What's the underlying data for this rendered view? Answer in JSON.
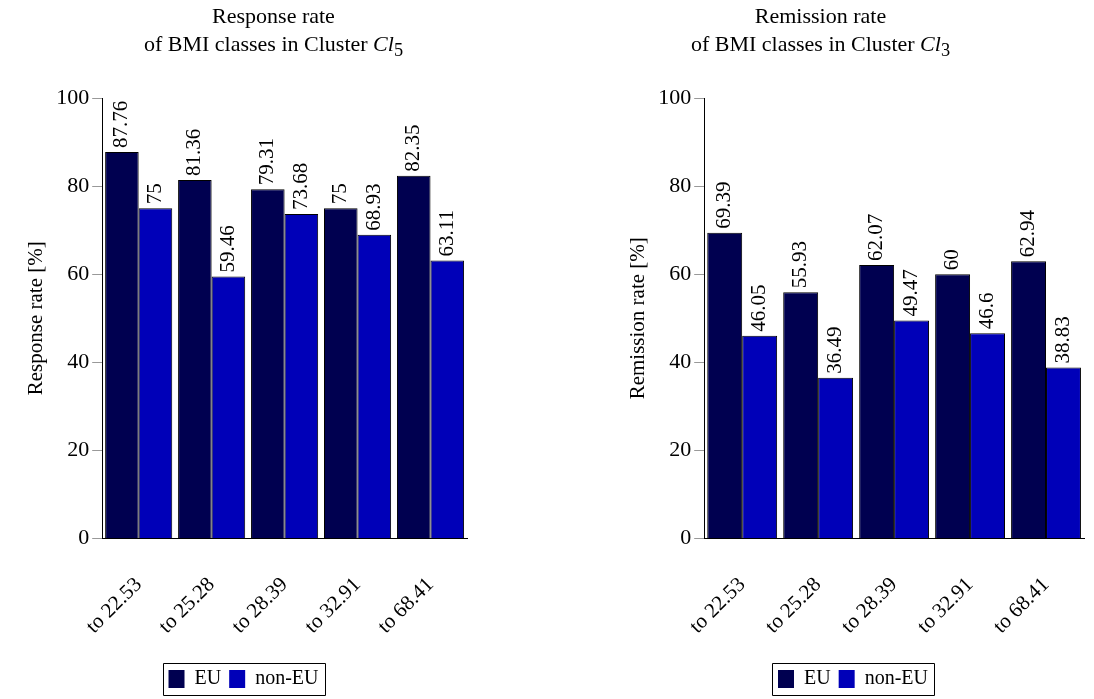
{
  "chart_data": [
    {
      "type": "bar",
      "title": "Response rate\nof BMI classes in Cluster Cl$_{5}$",
      "ylabel": "Response rate [%]",
      "categories": [
        "to 22.53",
        "to 25.28",
        "to 28.39",
        "to 32.91",
        "to 68.41"
      ],
      "series": [
        {
          "name": "EU",
          "color": "#000050",
          "values": [
            87.76,
            81.36,
            79.31,
            75,
            82.35
          ]
        },
        {
          "name": "non-EU",
          "color": "#0000b8",
          "values": [
            75,
            59.46,
            73.68,
            68.93,
            63.11
          ]
        }
      ],
      "ylim": [
        0,
        100
      ],
      "yticks": [
        0,
        20,
        40,
        60,
        80,
        100
      ],
      "data_labels": true,
      "legend": "bottom"
    },
    {
      "type": "bar",
      "title": "Remission rate\nof BMI classes in Cluster Cl$_{3}$",
      "ylabel": "Remission rate [%]",
      "categories": [
        "to 22.53",
        "to 25.28",
        "to 28.39",
        "to 32.91",
        "to 68.41"
      ],
      "series": [
        {
          "name": "EU",
          "color": "#000050",
          "values": [
            69.39,
            55.93,
            62.07,
            60,
            62.94
          ]
        },
        {
          "name": "non-EU",
          "color": "#0000b8",
          "values": [
            46.05,
            36.49,
            49.47,
            46.6,
            38.83
          ]
        }
      ],
      "ylim": [
        0,
        100
      ],
      "yticks": [
        0,
        20,
        40,
        60,
        80,
        100
      ],
      "data_labels": true,
      "legend": "bottom"
    }
  ]
}
